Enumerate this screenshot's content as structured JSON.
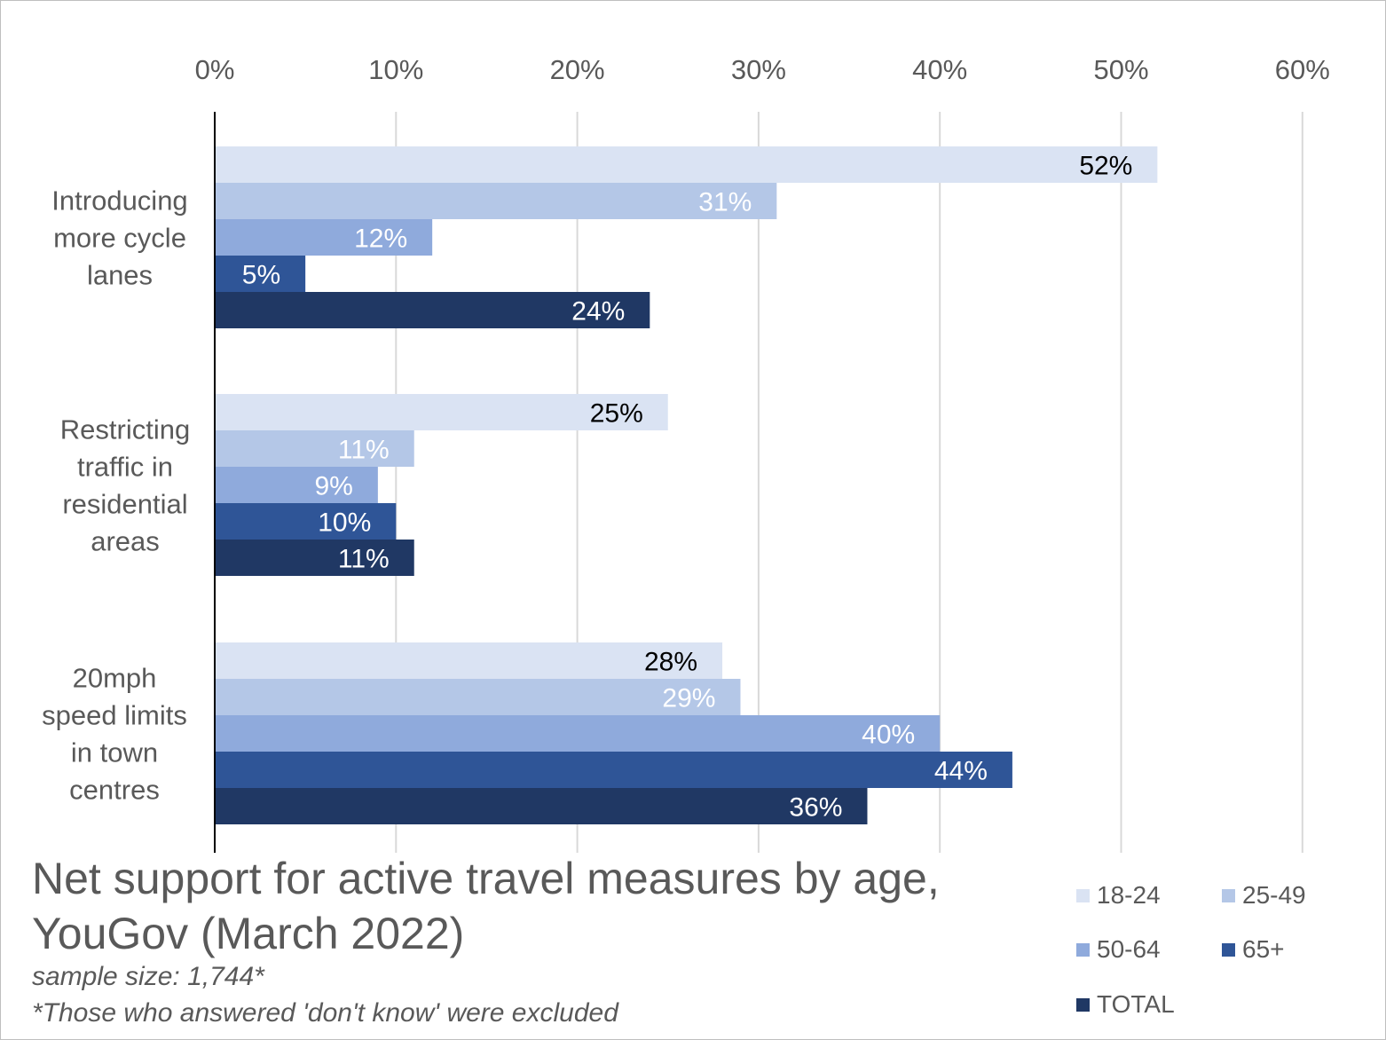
{
  "chart_data": {
    "type": "bar",
    "orientation": "horizontal",
    "title": "Net support for active travel measures by age, YouGov (March 2022)",
    "notes": [
      "sample size: 1,744*",
      "*Those who answered 'don't know' were excluded"
    ],
    "categories": [
      [
        "Introducing",
        "more cycle",
        "lanes"
      ],
      [
        "Restricting",
        "traffic in",
        "residential",
        "areas"
      ],
      [
        "20mph",
        "speed limits",
        "in town",
        "centres"
      ]
    ],
    "series": [
      {
        "name": "18-24",
        "color": "#dae3f3",
        "label_color": "#000000",
        "values": [
          52,
          25,
          28
        ]
      },
      {
        "name": "25-49",
        "color": "#b4c7e7",
        "label_color": "#ffffff",
        "values": [
          31,
          11,
          29
        ]
      },
      {
        "name": "50-64",
        "color": "#8faadc",
        "label_color": "#ffffff",
        "values": [
          12,
          9,
          40
        ]
      },
      {
        "name": "65+",
        "color": "#2f5597",
        "label_color": "#ffffff",
        "values": [
          5,
          10,
          44
        ]
      },
      {
        "name": "TOTAL",
        "color": "#203864",
        "label_color": "#ffffff",
        "values": [
          24,
          11,
          36
        ]
      }
    ],
    "value_suffix": "%",
    "xlim": [
      0,
      60
    ],
    "x_ticks": [
      "0%",
      "10%",
      "20%",
      "30%",
      "40%",
      "50%",
      "60%"
    ],
    "x_axis_position": "top",
    "grid": true,
    "legend_position": "bottom-right"
  }
}
